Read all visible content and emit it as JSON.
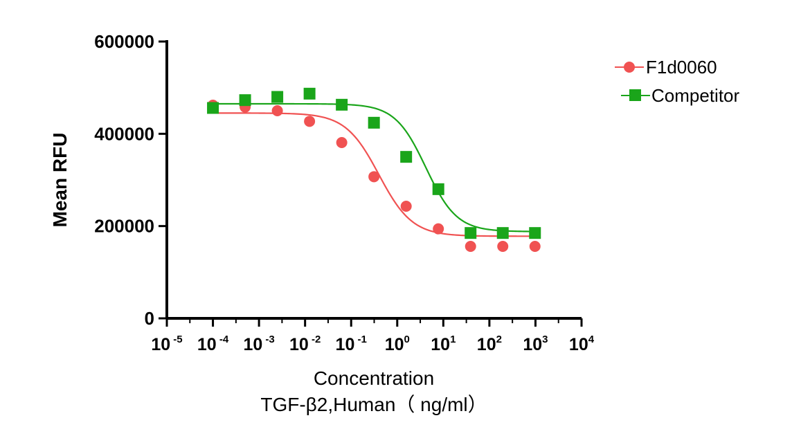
{
  "chart_data": {
    "type": "scatter",
    "title": "",
    "ylabel": "Mean RFU",
    "xlabel": "Concentration",
    "xlabel_line2": "TGF-β2,Human（ ng/ml）",
    "x_scale": "log10",
    "xlim_log10": [
      -5,
      4
    ],
    "x_tick_exponents": [
      -5,
      -4,
      -3,
      -2,
      -1,
      0,
      1,
      2,
      3,
      4
    ],
    "x_tick_base": "10",
    "ylim": [
      0,
      600000
    ],
    "y_ticks": [
      0,
      200000,
      400000,
      600000
    ],
    "y_tick_labels": [
      "0",
      "200000",
      "400000",
      "600000"
    ],
    "legend_position": "top-right",
    "series": [
      {
        "name": "F1d0060",
        "marker": "circle",
        "color": "#f05252",
        "x": [
          0.0001,
          0.0005,
          0.0025,
          0.0125,
          0.0625,
          0.3125,
          1.5625,
          7.8125,
          39.0625,
          195.3125,
          976.5625
        ],
        "y": [
          462000,
          458000,
          450000,
          427000,
          381000,
          307000,
          243000,
          194000,
          156000,
          156000,
          156000
        ],
        "fit": {
          "top": 445000,
          "bottom": 178000,
          "ic50": 0.4,
          "hill": 1.2
        }
      },
      {
        "name": "Competitor",
        "marker": "square",
        "color": "#1aa51a",
        "x": [
          0.0001,
          0.0005,
          0.0025,
          0.0125,
          0.0625,
          0.3125,
          1.5625,
          7.8125,
          39.0625,
          195.3125,
          976.5625
        ],
        "y": [
          456000,
          473000,
          480000,
          487000,
          463000,
          424000,
          350000,
          280000,
          185000,
          185000,
          185000
        ],
        "fit": {
          "top": 465000,
          "bottom": 188000,
          "ic50": 4.2,
          "hill": 1.3
        }
      }
    ]
  }
}
